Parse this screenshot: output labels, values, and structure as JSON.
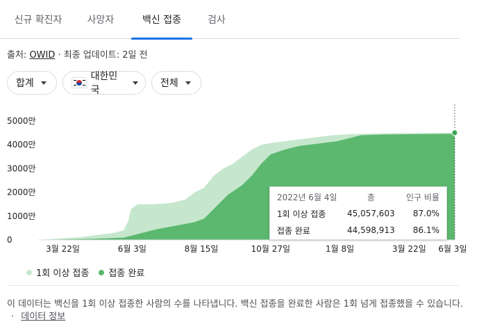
{
  "tabs": [
    {
      "label": "신규 확진자",
      "active": false
    },
    {
      "label": "사망자",
      "active": false
    },
    {
      "label": "백신 접종",
      "active": true
    },
    {
      "label": "검사",
      "active": false
    }
  ],
  "source": {
    "prefix": "출처:",
    "link": "OWID",
    "updated": "· 최종 업데이트: 2일 전"
  },
  "filters": {
    "metric": "합계",
    "country": "대한민국",
    "group": "전체"
  },
  "colors": {
    "at_least_one": "#c6e7cd",
    "fully": "#5cb86f",
    "accent": "#1a73e8",
    "endpoint": "#34a853"
  },
  "tooltip": {
    "date": "2022년 6월 4일",
    "col_total": "총",
    "col_pct": "인구 비율",
    "rows": [
      {
        "label": "1회 이상 접종",
        "total": "45,057,603",
        "pct": "87.0%"
      },
      {
        "label": "접종 완료",
        "total": "44,598,913",
        "pct": "86.1%"
      }
    ]
  },
  "legend": {
    "at_least_one": "1회 이상 접종",
    "fully": "접종 완료"
  },
  "footnote": {
    "text": "이 데이터는 백신을 1회 이상 접종한 사람의 수를 나타냅니다. 백신 접종을 완료한 사람은 1회 넘게 접종했을 수 있습니다.",
    "sep": "·",
    "link": "데이터 정보"
  },
  "chart_data": {
    "type": "area",
    "y_tick_labels": [
      "0",
      "1000만",
      "2000만",
      "3000만",
      "4000만",
      "5000만"
    ],
    "ylim": [
      0,
      50000000
    ],
    "x_tick_labels": [
      "3월 22일",
      "6월 3일",
      "8월 15일",
      "10월 27일",
      "1월 8일",
      "3월 22일",
      "6월 3일"
    ],
    "x_day_range": [
      0,
      439
    ],
    "x_tick_days": [
      26,
      99,
      172,
      245,
      318,
      391,
      464
    ],
    "series": [
      {
        "name": "1회 이상 접종",
        "points": [
          [
            0,
            0
          ],
          [
            10,
            300000
          ],
          [
            26,
            700000
          ],
          [
            45,
            1200000
          ],
          [
            60,
            2000000
          ],
          [
            80,
            3000000
          ],
          [
            90,
            4000000
          ],
          [
            95,
            8000000
          ],
          [
            98,
            13000000
          ],
          [
            105,
            15000000
          ],
          [
            120,
            15000000
          ],
          [
            140,
            15500000
          ],
          [
            155,
            17000000
          ],
          [
            165,
            20000000
          ],
          [
            175,
            22000000
          ],
          [
            185,
            27000000
          ],
          [
            195,
            30000000
          ],
          [
            205,
            32000000
          ],
          [
            215,
            35000000
          ],
          [
            225,
            38000000
          ],
          [
            235,
            40000000
          ],
          [
            250,
            41000000
          ],
          [
            270,
            42000000
          ],
          [
            290,
            43000000
          ],
          [
            310,
            44000000
          ],
          [
            330,
            44500000
          ],
          [
            350,
            44700000
          ],
          [
            380,
            44900000
          ],
          [
            410,
            45000000
          ],
          [
            439,
            45057603
          ]
        ]
      },
      {
        "name": "접종 완료",
        "points": [
          [
            0,
            0
          ],
          [
            26,
            200000
          ],
          [
            60,
            500000
          ],
          [
            90,
            1000000
          ],
          [
            100,
            2000000
          ],
          [
            110,
            3000000
          ],
          [
            125,
            4500000
          ],
          [
            145,
            6000000
          ],
          [
            165,
            7500000
          ],
          [
            175,
            9000000
          ],
          [
            185,
            13000000
          ],
          [
            200,
            19000000
          ],
          [
            215,
            23000000
          ],
          [
            225,
            27000000
          ],
          [
            235,
            32000000
          ],
          [
            245,
            36000000
          ],
          [
            260,
            38000000
          ],
          [
            275,
            39500000
          ],
          [
            295,
            40500000
          ],
          [
            315,
            41500000
          ],
          [
            325,
            42500000
          ],
          [
            340,
            44000000
          ],
          [
            360,
            44300000
          ],
          [
            390,
            44450000
          ],
          [
            439,
            44598913
          ]
        ]
      }
    ],
    "grid": false,
    "legend_position": "bottom-left"
  }
}
